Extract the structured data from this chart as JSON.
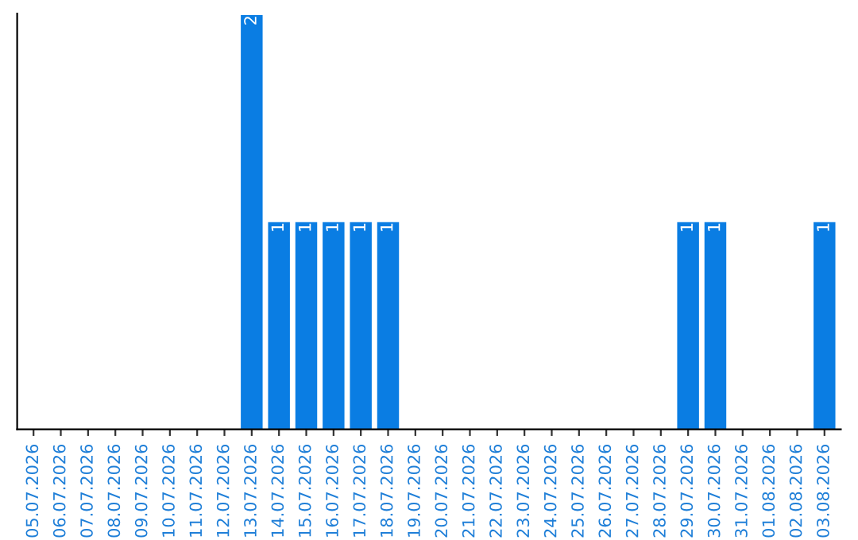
{
  "chart_data": {
    "type": "bar",
    "categories": [
      "05.07.2026",
      "06.07.2026",
      "07.07.2026",
      "08.07.2026",
      "09.07.2026",
      "10.07.2026",
      "11.07.2026",
      "12.07.2026",
      "13.07.2026",
      "14.07.2026",
      "15.07.2026",
      "16.07.2026",
      "17.07.2026",
      "18.07.2026",
      "19.07.2026",
      "20.07.2026",
      "21.07.2026",
      "22.07.2026",
      "23.07.2026",
      "24.07.2026",
      "25.07.2026",
      "26.07.2026",
      "27.07.2026",
      "28.07.2026",
      "29.07.2026",
      "30.07.2026",
      "31.07.2026",
      "01.08.2026",
      "02.08.2026",
      "03.08.2026"
    ],
    "values": [
      0,
      0,
      0,
      0,
      0,
      0,
      0,
      0,
      2,
      1,
      1,
      1,
      1,
      1,
      0,
      0,
      0,
      0,
      0,
      0,
      0,
      0,
      0,
      0,
      1,
      1,
      0,
      0,
      0,
      1
    ],
    "value_labels": [
      null,
      null,
      null,
      null,
      null,
      null,
      null,
      null,
      "2",
      "1",
      "1",
      "1",
      "1",
      "1",
      null,
      null,
      null,
      null,
      null,
      null,
      null,
      null,
      null,
      null,
      "1",
      "1",
      null,
      null,
      null,
      "1"
    ],
    "color": "#0a7de3",
    "grid": false,
    "legend": false
  }
}
